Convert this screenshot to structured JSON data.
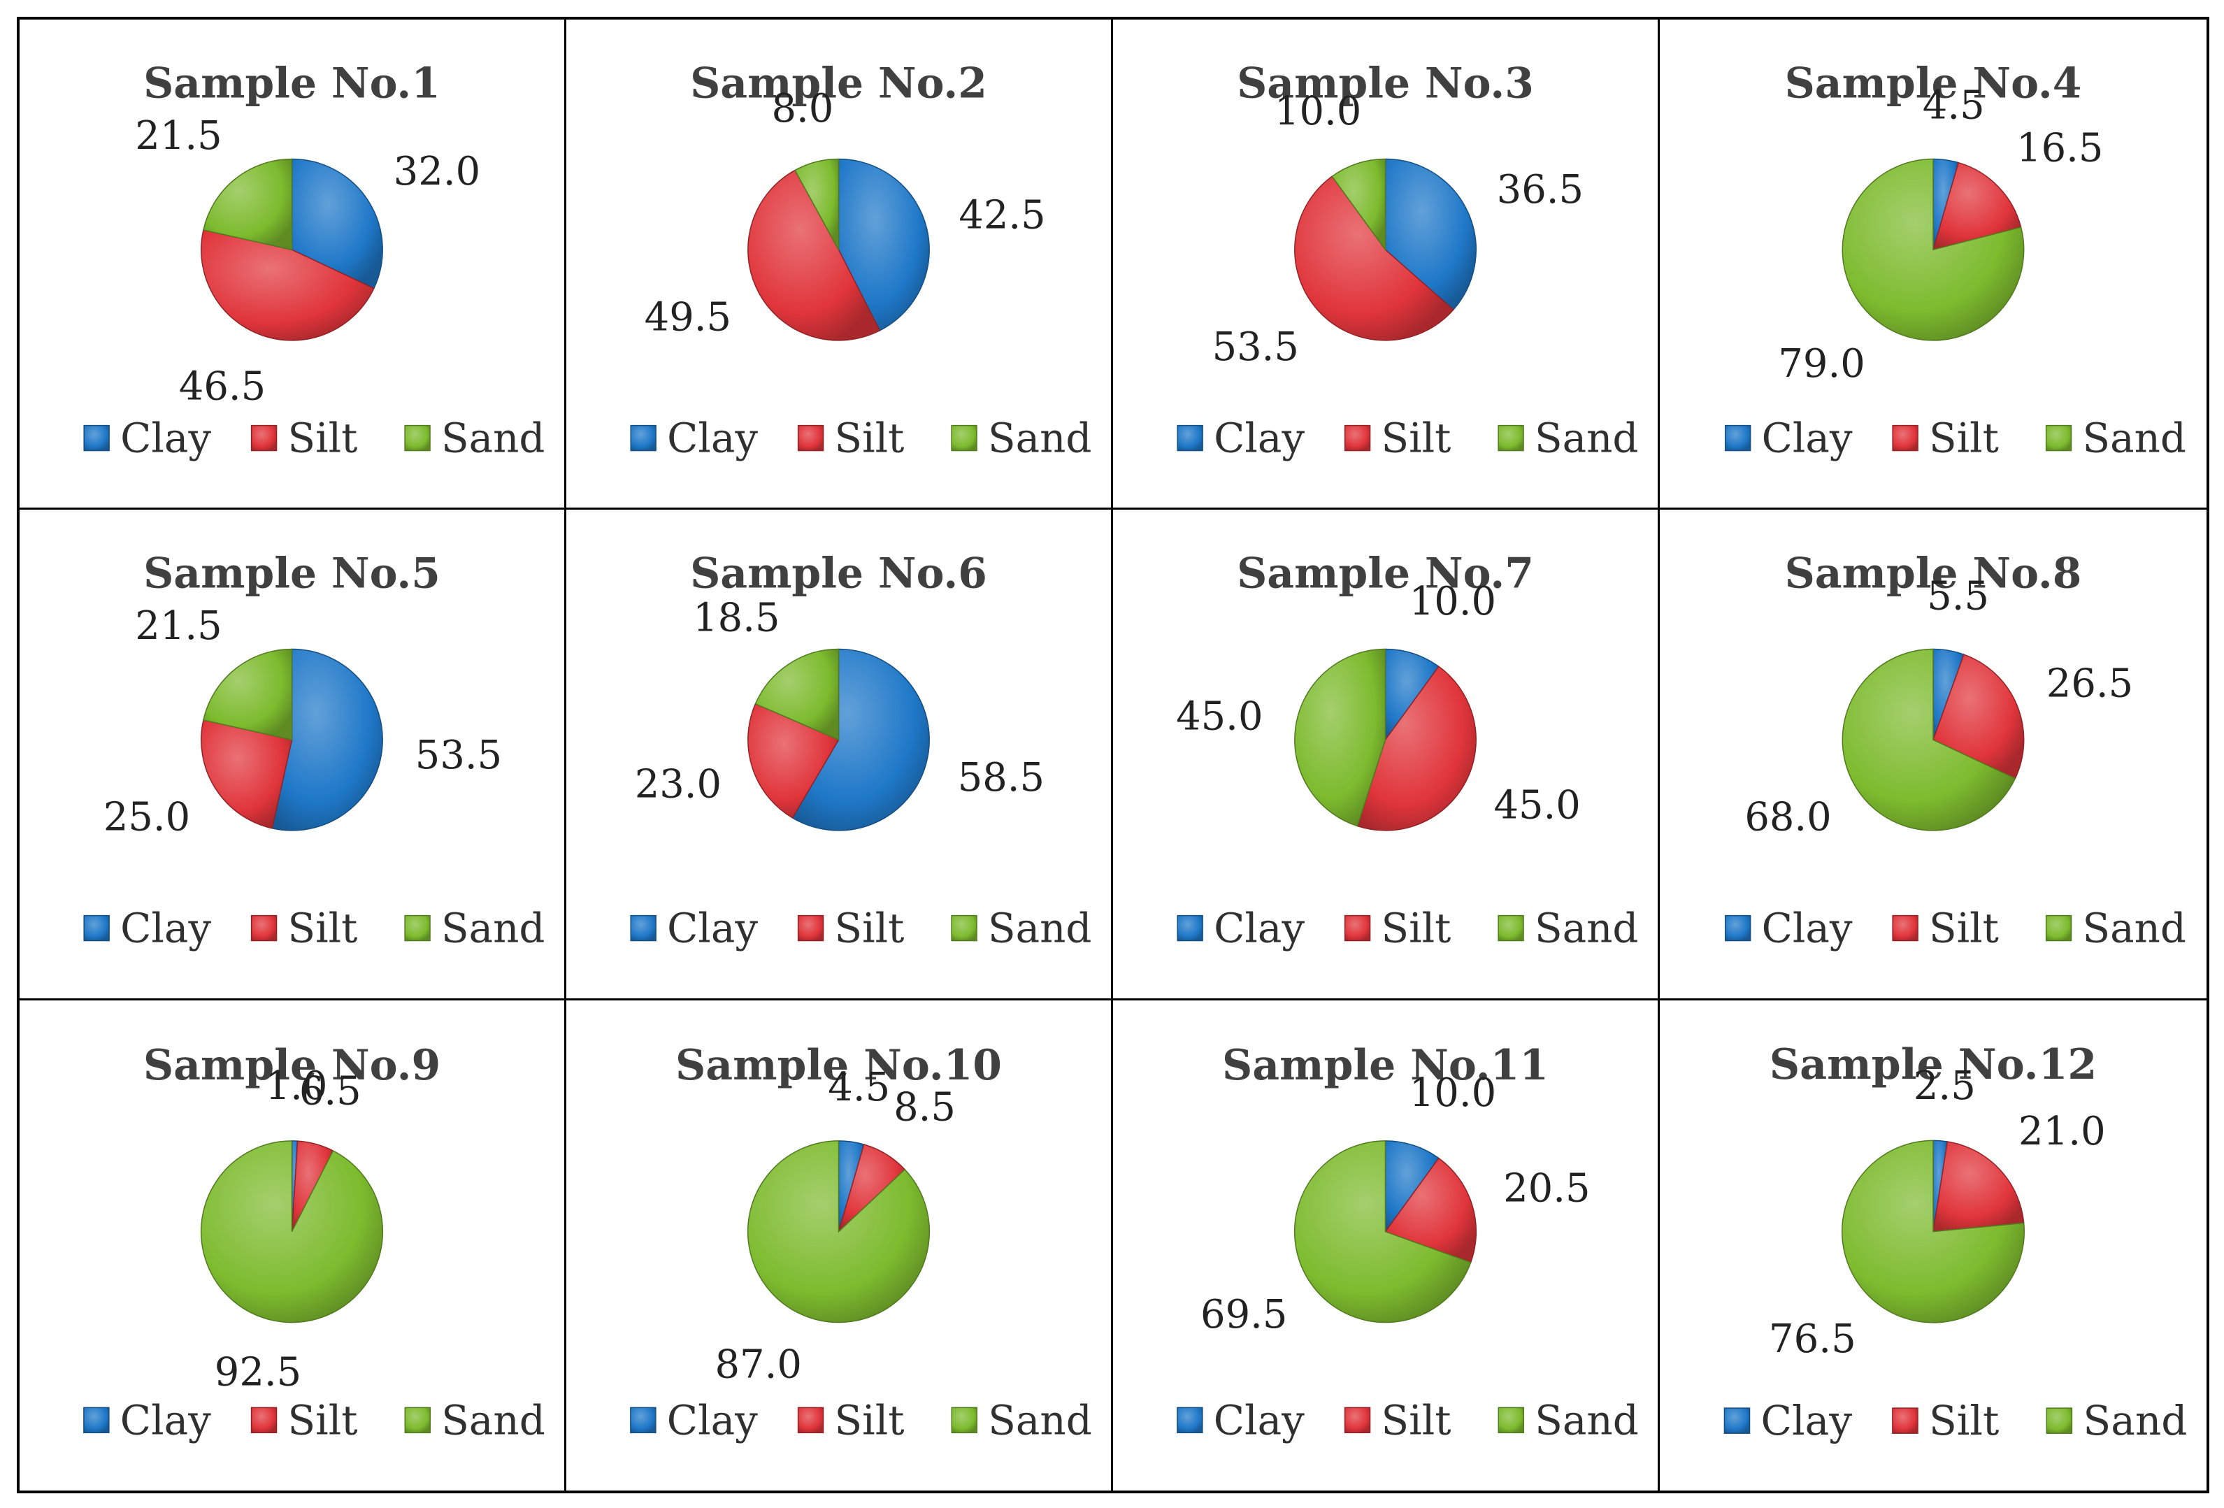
{
  "colors": {
    "clay": "#1F78C8",
    "silt": "#E0353B",
    "sand": "#7DBB2E"
  },
  "legend": [
    "Clay",
    "Silt",
    "Sand"
  ],
  "chart_data": [
    {
      "type": "pie",
      "title": "Sample No.1",
      "categories": [
        "Clay",
        "Silt",
        "Sand"
      ],
      "values": [
        32.0,
        46.5,
        21.5
      ],
      "labels": [
        "32.0",
        "46.5",
        "21.5"
      ]
    },
    {
      "type": "pie",
      "title": "Sample No.2",
      "categories": [
        "Clay",
        "Silt",
        "Sand"
      ],
      "values": [
        42.5,
        49.5,
        8.0
      ],
      "labels": [
        "42.5",
        "49.5",
        "8.0"
      ]
    },
    {
      "type": "pie",
      "title": "Sample No.3",
      "categories": [
        "Clay",
        "Silt",
        "Sand"
      ],
      "values": [
        36.5,
        53.5,
        10.0
      ],
      "labels": [
        "36.5",
        "53.5",
        "10.0"
      ]
    },
    {
      "type": "pie",
      "title": "Sample No.4",
      "categories": [
        "Clay",
        "Silt",
        "Sand"
      ],
      "values": [
        4.5,
        16.5,
        79.0
      ],
      "labels": [
        "4.5",
        "16.5",
        "79.0"
      ]
    },
    {
      "type": "pie",
      "title": "Sample No.5",
      "categories": [
        "Clay",
        "Silt",
        "Sand"
      ],
      "values": [
        53.5,
        25.0,
        21.5
      ],
      "labels": [
        "53.5",
        "25.0",
        "21.5"
      ]
    },
    {
      "type": "pie",
      "title": "Sample No.6",
      "categories": [
        "Clay",
        "Silt",
        "Sand"
      ],
      "values": [
        58.5,
        23.0,
        18.5
      ],
      "labels": [
        "58.5",
        "23.0",
        "18.5"
      ]
    },
    {
      "type": "pie",
      "title": "Sample No.7",
      "categories": [
        "Clay",
        "Silt",
        "Sand"
      ],
      "values": [
        10.0,
        45.0,
        45.0
      ],
      "labels": [
        "10.0",
        "45.0",
        "45.0"
      ]
    },
    {
      "type": "pie",
      "title": "Sample No.8",
      "categories": [
        "Clay",
        "Silt",
        "Sand"
      ],
      "values": [
        5.5,
        26.5,
        68.0
      ],
      "labels": [
        "5.5",
        "26.5",
        "68.0"
      ]
    },
    {
      "type": "pie",
      "title": "Sample No.9",
      "categories": [
        "Clay",
        "Silt",
        "Sand"
      ],
      "values": [
        1.0,
        6.5,
        92.5
      ],
      "labels": [
        "1.0",
        "6.5",
        "92.5"
      ]
    },
    {
      "type": "pie",
      "title": "Sample No.10",
      "categories": [
        "Clay",
        "Silt",
        "Sand"
      ],
      "values": [
        4.5,
        8.5,
        87.0
      ],
      "labels": [
        "4.5",
        "8.5",
        "87.0"
      ]
    },
    {
      "type": "pie",
      "title": "Sample No.11",
      "categories": [
        "Clay",
        "Silt",
        "Sand"
      ],
      "values": [
        10.0,
        20.5,
        69.5
      ],
      "labels": [
        "10.0",
        "20.5",
        "69.5"
      ]
    },
    {
      "type": "pie",
      "title": "Sample No.12",
      "categories": [
        "Clay",
        "Silt",
        "Sand"
      ],
      "values": [
        2.5,
        21.0,
        76.5
      ],
      "labels": [
        "2.5",
        "21.0",
        "76.5"
      ]
    }
  ]
}
